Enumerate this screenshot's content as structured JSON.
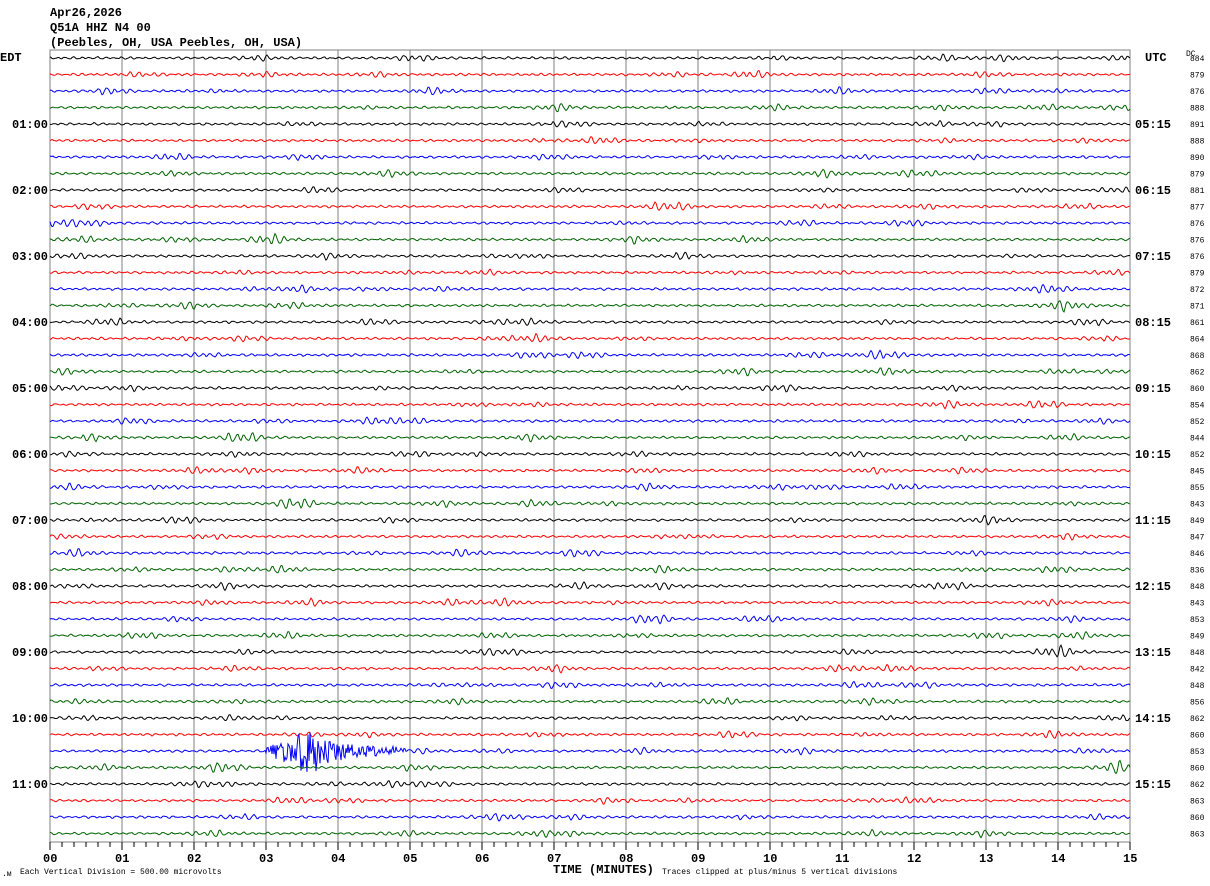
{
  "header": {
    "date": "Apr26,2026",
    "station": "Q51A HHZ N4 00",
    "location": "(Peebles, OH, USA Peebles, OH, USA)"
  },
  "chart_data": {
    "type": "line",
    "title": "Q51A HHZ N4 00 helicorder",
    "xlabel": "TIME (MINUTES)",
    "xlim": [
      0,
      15
    ],
    "x_ticks": [
      "00",
      "01",
      "02",
      "03",
      "04",
      "05",
      "06",
      "07",
      "08",
      "09",
      "10",
      "11",
      "12",
      "13",
      "14",
      "15"
    ],
    "left_axis_title": "EDT",
    "right_axis_title": "UTC",
    "dc_title": "DC",
    "rows_per_hour": 4,
    "left_hour_labels": [
      "01:00",
      "02:00",
      "03:00",
      "04:00",
      "05:00",
      "06:00",
      "07:00",
      "08:00",
      "09:00",
      "10:00",
      "11:00"
    ],
    "right_hour_labels": [
      "05:15",
      "06:15",
      "07:15",
      "08:15",
      "09:15",
      "10:15",
      "11:15",
      "12:15",
      "13:15",
      "14:15",
      "15:15"
    ],
    "trace_colors": [
      "#000000",
      "#ff0000",
      "#0000ff",
      "#006400"
    ],
    "dc_offsets": [
      "884",
      "879",
      "876",
      "888",
      "891",
      "888",
      "890",
      "879",
      "881",
      "877",
      "876",
      "876",
      "876",
      "879",
      "872",
      "871",
      "861",
      "864",
      "868",
      "862",
      "860",
      "854",
      "852",
      "844",
      "852",
      "845",
      "855",
      "843",
      "849",
      "847",
      "846",
      "836",
      "848",
      "843",
      "853",
      "849",
      "848",
      "842",
      "848",
      "856",
      "862",
      "860",
      "853",
      "860",
      "862",
      "863",
      "860",
      "863"
    ],
    "event": {
      "row": 42,
      "start_min": 3.0,
      "peak_min": 3.65,
      "end_min": 5.0
    },
    "scale_note": "Each Vertical Division =  500.00 microvolts",
    "clip_note": "Traces clipped at plus/minus 5 vertical divisions"
  }
}
